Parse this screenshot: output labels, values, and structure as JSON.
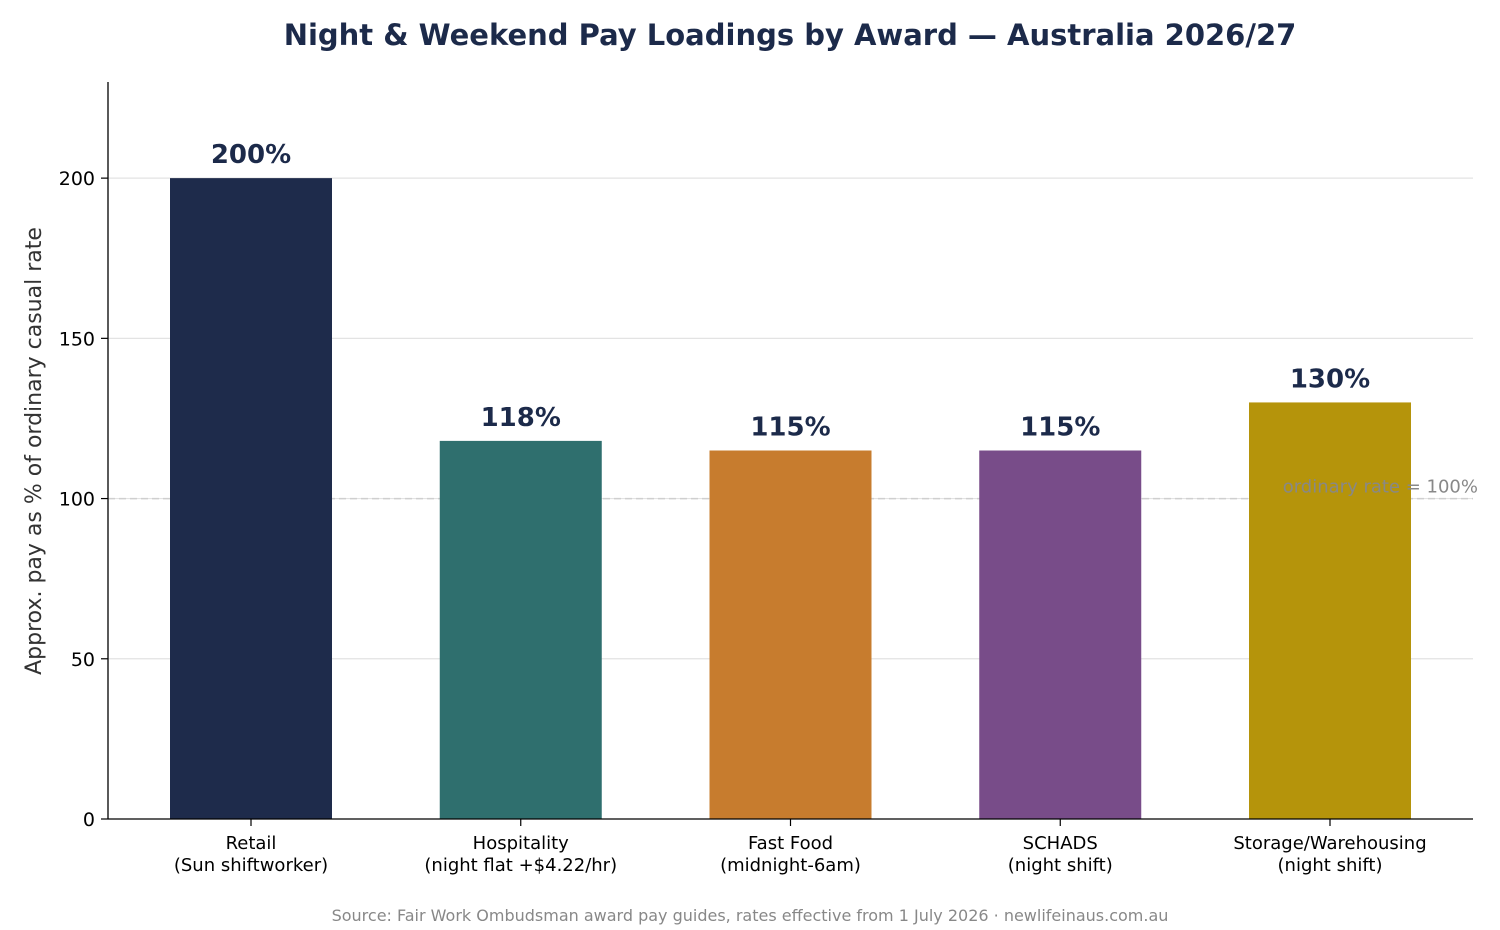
{
  "chart_data": {
    "type": "bar",
    "title": "Night & Weekend Pay Loadings by Award — Australia 2026/27",
    "xlabel": "",
    "ylabel": "Approx. pay as % of ordinary casual rate",
    "ylim": [
      0,
      230
    ],
    "yticks": [
      0,
      50,
      100,
      150,
      200
    ],
    "grid": "horizontal",
    "categories": [
      [
        "Retail",
        "(Sun shiftworker)"
      ],
      [
        "Hospitality",
        "(night flat +$4.22/hr)"
      ],
      [
        "Fast Food",
        "(midnight-6am)"
      ],
      [
        "SCHADS",
        "(night shift)"
      ],
      [
        "Storage/Warehousing",
        "(night shift)"
      ]
    ],
    "values": [
      200,
      118,
      115,
      115,
      130
    ],
    "data_labels": [
      "200%",
      "118%",
      "115%",
      "115%",
      "130%"
    ],
    "colors": [
      "#1e2b4b",
      "#2f6f6e",
      "#c77c2e",
      "#784c89",
      "#b5940b"
    ],
    "reference_line": {
      "value": 100,
      "label": "ordinary rate = 100%",
      "style": "dashed"
    },
    "source": "Source: Fair Work Ombudsman award pay guides, rates effective from 1 July 2026 · newlifeinaus.com.au"
  }
}
